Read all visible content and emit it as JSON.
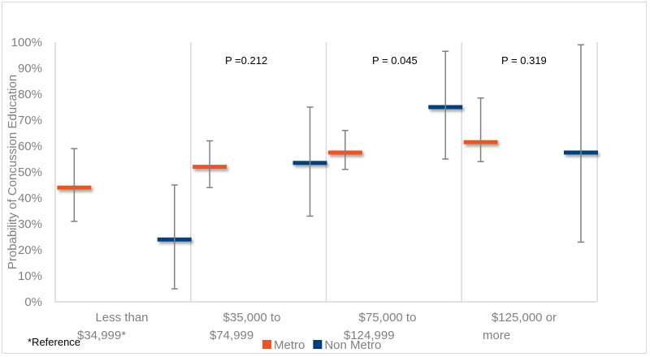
{
  "chart_data": {
    "type": "scatter",
    "subtype": "mean-with-error-bars",
    "title": "",
    "xlabel": "",
    "ylabel": "Probability of Concussion Education",
    "ylim": [
      0,
      100
    ],
    "y_ticks": [
      "0%",
      "10%",
      "20%",
      "30%",
      "40%",
      "50%",
      "60%",
      "70%",
      "80%",
      "90%",
      "100%"
    ],
    "categories": [
      [
        "Less than",
        "$34,999*"
      ],
      [
        "$35,000 to",
        "$74,999"
      ],
      [
        "$75,000 to",
        "$124,999"
      ],
      [
        "$125,000 or",
        "more"
      ]
    ],
    "series": [
      {
        "name": "Metro",
        "color": "#F4511E",
        "values": [
          44,
          52,
          57.5,
          61.5
        ],
        "lower": [
          31,
          44,
          51,
          54
        ],
        "upper": [
          59,
          62,
          66,
          78.5
        ]
      },
      {
        "name": "Non Metro",
        "color": "#003F7F",
        "values": [
          24,
          53.5,
          75,
          57.5
        ],
        "lower": [
          5,
          33,
          55,
          23
        ],
        "upper": [
          45,
          75,
          96.5,
          99
        ]
      }
    ],
    "annotations": [
      {
        "category_index": 1,
        "text": "P =0.212"
      },
      {
        "category_index": 2,
        "text": "P = 0.045"
      },
      {
        "category_index": 3,
        "text": "P = 0.319"
      }
    ],
    "footnote": "*Reference",
    "legend_position": "bottom-center",
    "grid": false,
    "errorbar_color": "#808080",
    "axis_color": "#d9d9d9"
  }
}
